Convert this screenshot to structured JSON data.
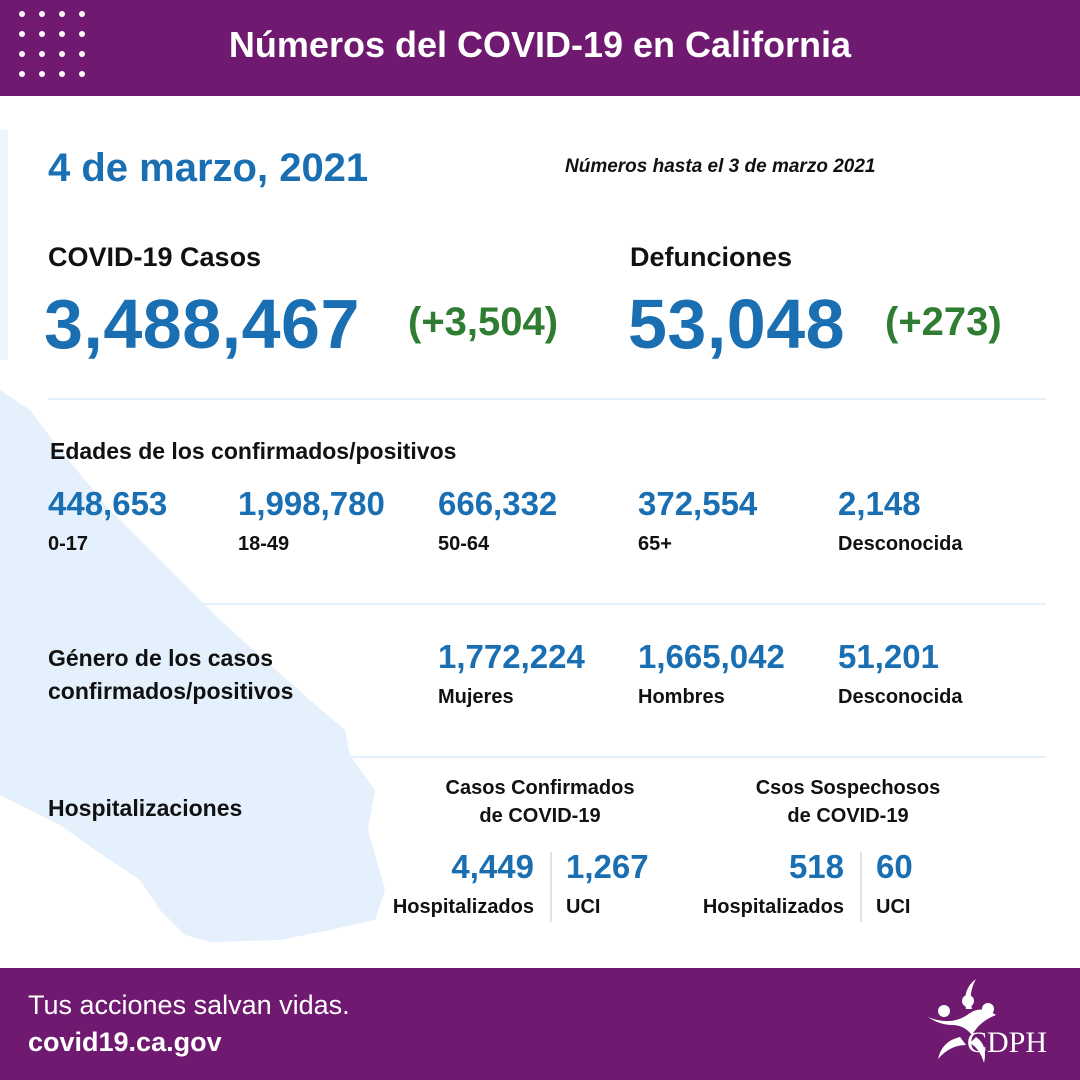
{
  "header": {
    "title": "Números del COVID-19 en California"
  },
  "date": "4 de marzo, 2021",
  "as_of": "Números hasta el 3 de marzo 2021",
  "cases": {
    "label": "COVID-19 Casos",
    "value": "3,488,467",
    "delta": "(+3,504)"
  },
  "deaths": {
    "label": "Defunciones",
    "value": "53,048",
    "delta": "(+273)"
  },
  "ages": {
    "title": "Edades de los confirmados/positivos",
    "items": [
      {
        "value": "448,653",
        "label": "0-17"
      },
      {
        "value": "1,998,780",
        "label": "18-49"
      },
      {
        "value": "666,332",
        "label": "50-64"
      },
      {
        "value": "372,554",
        "label": "65+"
      },
      {
        "value": "2,148",
        "label": "Desconocida"
      }
    ]
  },
  "gender": {
    "title_line1": "Género de los casos",
    "title_line2": "confirmados/positivos",
    "items": [
      {
        "value": "1,772,224",
        "label": "Mujeres"
      },
      {
        "value": "1,665,042",
        "label": "Hombres"
      },
      {
        "value": "51,201",
        "label": "Desconocida"
      }
    ]
  },
  "hospital": {
    "title": "Hospitalizaciones",
    "confirmed": {
      "head_line1": "Casos Confirmados",
      "head_line2": "de COVID-19",
      "hospitalized": {
        "value": "4,449",
        "label": "Hospitalizados"
      },
      "icu": {
        "value": "1,267",
        "label": "UCI"
      }
    },
    "suspected": {
      "head_line1": "Csos Sospechosos",
      "head_line2": "de COVID-19",
      "hospitalized": {
        "value": "518",
        "label": "Hospitalizados"
      },
      "icu": {
        "value": "60",
        "label": "UCI"
      }
    }
  },
  "footer": {
    "tagline": "Tus acciones salvan vidas.",
    "website": "covid19.ca.gov",
    "logo_text": "CDPH"
  },
  "colors": {
    "brand_purple": "#6f1a70",
    "accent_blue": "#1a6fb3",
    "delta_green": "#2e7d32",
    "map_fill": "#e4f1fc"
  }
}
